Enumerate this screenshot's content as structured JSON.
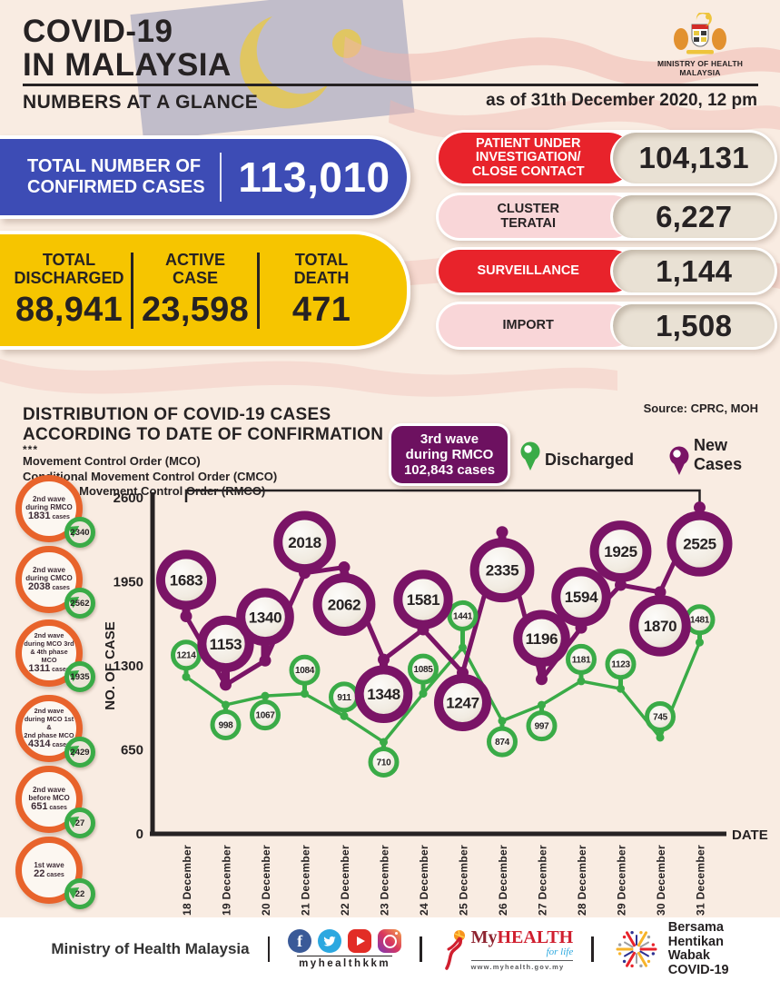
{
  "colors": {
    "background": "#f9ece2",
    "blue": "#3d4cb5",
    "yellow": "#f6c500",
    "red": "#e8232b",
    "pink": "#f9d6d8",
    "value_pill": "#e9e1d4",
    "purple": "#7a1466",
    "badge_purple": "#6d1160",
    "green": "#3aab47",
    "orange_ring": "#e8632b",
    "ink": "#262223"
  },
  "header": {
    "title_line1": "COVID-19",
    "title_line2": "IN MALAYSIA",
    "subtitle": "NUMBERS AT A GLANCE",
    "ministry_line1": "MINISTRY OF HEALTH",
    "ministry_line2": "MALAYSIA",
    "as_of": "as of 31th December 2020, 12 pm"
  },
  "confirmed": {
    "label_line1": "TOTAL NUMBER OF",
    "label_line2": "CONFIRMED CASES",
    "value": "113,010"
  },
  "summary_cells": [
    {
      "label_line1": "TOTAL",
      "label_line2": "DISCHARGED",
      "value": "88,941"
    },
    {
      "label_line1": "ACTIVE",
      "label_line2": "CASE",
      "value": "23,598"
    },
    {
      "label_line1": "TOTAL",
      "label_line2": "DEATH",
      "value": "471"
    }
  ],
  "categories": [
    {
      "label_lines": [
        "PATIENT UNDER",
        "INVESTIGATION/",
        "CLOSE CONTACT"
      ],
      "value": "104,131",
      "style": "red"
    },
    {
      "label_lines": [
        "CLUSTER",
        "TERATAI"
      ],
      "value": "6,227",
      "style": "pink"
    },
    {
      "label_lines": [
        "SURVEILLANCE"
      ],
      "value": "1,144",
      "style": "red"
    },
    {
      "label_lines": [
        "IMPORT"
      ],
      "value": "1,508",
      "style": "pink"
    }
  ],
  "chart_section": {
    "title_line1": "DISTRIBUTION OF COVID-19 CASES",
    "title_line2": "ACCORDING TO DATE OF CONFIRMATION",
    "footnote_marks": "***",
    "mco_lines": [
      "Movement Control Order (MCO)",
      "Conditional Movement Control Order (CMCO)",
      "Recovery Movement Control Order (RMCO)"
    ],
    "source": "Source: CPRC, MOH",
    "third_wave_badge_lines": [
      "3rd wave",
      "during RMCO",
      "102,843 cases"
    ],
    "legend": [
      {
        "label": "Discharged",
        "color": "#3aab47"
      },
      {
        "label": "New Cases",
        "color": "#7a1466"
      }
    ]
  },
  "wave_annotations": [
    {
      "lines": [
        "2nd wave",
        "during RMCO"
      ],
      "cases_value": "1831",
      "cases_word": "cases",
      "badge": "2340"
    },
    {
      "lines": [
        "2nd wave",
        "during CMCO"
      ],
      "cases_value": "2038",
      "cases_word": "cases",
      "badge": "2562"
    },
    {
      "lines": [
        "2nd wave",
        "during MCO 3rd",
        "& 4th phase MCO"
      ],
      "cases_value": "1311",
      "cases_word": "cases",
      "badge": "1935"
    },
    {
      "lines": [
        "2nd wave",
        "during MCO 1st &",
        "2nd phase MCO"
      ],
      "cases_value": "4314",
      "cases_word": "cases",
      "badge": "2429"
    },
    {
      "lines": [
        "2nd wave",
        "before MCO"
      ],
      "cases_value": "651",
      "cases_word": "cases",
      "badge": "27"
    },
    {
      "lines": [
        "1st wave"
      ],
      "cases_value": "22",
      "cases_word": "cases",
      "badge": "22"
    }
  ],
  "chart_data": {
    "type": "line",
    "x": [
      "18 December",
      "19 December",
      "20 December",
      "21 December",
      "22 December",
      "23 December",
      "24 December",
      "25 December",
      "26 December",
      "27 December",
      "28 December",
      "29 December",
      "30 December",
      "31 December"
    ],
    "series": [
      {
        "name": "New Cases",
        "color": "#7a1466",
        "values": [
          1683,
          1153,
          1340,
          2018,
          2062,
          1348,
          1581,
          1247,
          2335,
          1196,
          1594,
          1925,
          1870,
          2525
        ],
        "marker_dy": [
          -40,
          -45,
          -48,
          -34,
          41,
          38,
          -33,
          33,
          42,
          -45,
          -34,
          -37,
          37,
          40
        ]
      },
      {
        "name": "Discharged",
        "color": "#3aab47",
        "values": [
          1214,
          998,
          1067,
          1084,
          911,
          710,
          1085,
          1441,
          874,
          997,
          1181,
          1123,
          745,
          1481
        ],
        "marker_dy": [
          -24,
          22,
          21,
          -26,
          -21,
          22,
          -27,
          -35,
          23,
          23,
          -24,
          -27,
          -23,
          -25
        ]
      }
    ],
    "ylabel": "NO. OF CASE",
    "xlabel": "DATE",
    "yticks": [
      0,
      650,
      1300,
      1950,
      2600
    ],
    "ylim": [
      0,
      2600
    ],
    "grid": false,
    "legend_position": "top-right",
    "bracket_span": {
      "from": "18 December",
      "to": "31 December",
      "label": "3rd wave during RMCO 102,843 cases"
    }
  },
  "footer": {
    "ministry": "Ministry of Health Malaysia",
    "social_handle": "myhealthkkm",
    "social_icons": [
      "facebook-icon",
      "twitter-icon",
      "youtube-icon",
      "instagram-icon"
    ],
    "myhealth": {
      "wordmark_prefix": "My",
      "wordmark_suffix": "HEALTH",
      "tagline": "for life",
      "url": "www.myhealth.gov.my"
    },
    "campaign_lines": [
      "Bersama",
      "Hentikan",
      "Wabak",
      "COVID-19"
    ]
  }
}
